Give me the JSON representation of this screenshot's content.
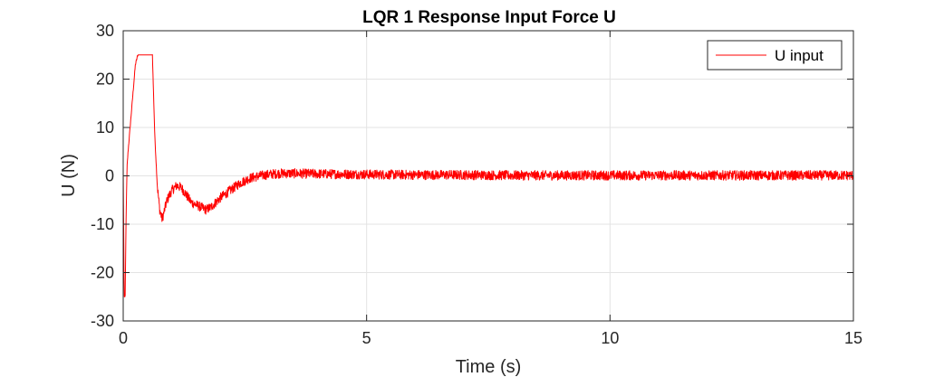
{
  "chart_data": {
    "type": "line",
    "title": "LQR 1 Response  Input Force U",
    "xlabel": "Time (s)",
    "ylabel": "U (N)",
    "xlim": [
      0,
      15
    ],
    "ylim": [
      -30,
      30
    ],
    "xticks": [
      0,
      5,
      10,
      15
    ],
    "xtick_labels": [
      "0",
      "5",
      "10",
      "15"
    ],
    "yticks": [
      -30,
      -20,
      -10,
      0,
      10,
      20,
      30
    ],
    "ytick_labels": [
      "-30",
      "-20",
      "-10",
      "0",
      "10",
      "20",
      "30"
    ],
    "grid": true,
    "legend_position": "top-right",
    "series": [
      {
        "name": "U input",
        "color": "#ff0000",
        "noise_amplitude": 1.0,
        "x": [
          0,
          0.02,
          0.04,
          0.06,
          0.08,
          0.1,
          0.15,
          0.2,
          0.25,
          0.3,
          0.35,
          0.4,
          0.45,
          0.5,
          0.55,
          0.6,
          0.62,
          0.65,
          0.7,
          0.75,
          0.8,
          0.85,
          0.9,
          1.0,
          1.1,
          1.2,
          1.3,
          1.4,
          1.5,
          1.6,
          1.7,
          1.8,
          1.9,
          2.0,
          2.2,
          2.4,
          2.6,
          2.8,
          3.0,
          3.2,
          3.5,
          4.0,
          5.0,
          6.0,
          7.0,
          8.0,
          9.0,
          10.0,
          11.0,
          12.0,
          13.0,
          14.0,
          15.0
        ],
        "values": [
          2,
          -25,
          -25,
          -8,
          2,
          5,
          11,
          17,
          23,
          25,
          25,
          25,
          25,
          25,
          25,
          25,
          18,
          8,
          -2,
          -7,
          -9,
          -7,
          -5,
          -3,
          -2,
          -2.5,
          -4,
          -5.5,
          -6,
          -6.5,
          -7,
          -6.5,
          -5.5,
          -4.5,
          -3,
          -1.5,
          -0.5,
          0,
          0.3,
          0.5,
          0.5,
          0.4,
          0.3,
          0.2,
          0.2,
          0.1,
          0.1,
          0.1,
          0.1,
          0.1,
          0.1,
          0.1,
          0.1
        ]
      }
    ]
  }
}
